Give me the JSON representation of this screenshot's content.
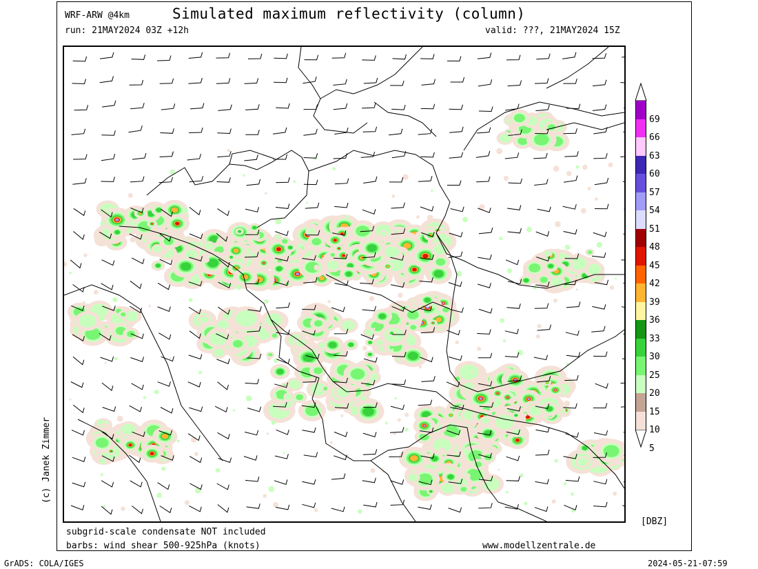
{
  "header": {
    "model": "WRF-ARW @4km",
    "title": "Simulated maximum reflectivity (column)",
    "run": "run: 21MAY2024 03Z +12h",
    "valid": "valid: ???, 21MAY2024 15Z"
  },
  "footer": {
    "note1": "subgrid-scale condensate NOT included",
    "note2": "barbs: wind shear 500-925hPa (knots)",
    "website": "www.modellzentrale.de",
    "grads": "GrADS: COLA/IGES",
    "timestamp": "2024-05-21-07:59",
    "author": "(c) Janek Zimmer"
  },
  "legend": {
    "unit": "[DBZ]",
    "levels": [
      {
        "label": "69",
        "color": "#a000c8"
      },
      {
        "label": "66",
        "color": "#f030f0"
      },
      {
        "label": "63",
        "color": "#ffc8ff"
      },
      {
        "label": "60",
        "color": "#3c28b4"
      },
      {
        "label": "57",
        "color": "#6450dc"
      },
      {
        "label": "54",
        "color": "#a09cf8"
      },
      {
        "label": "51",
        "color": "#dcdcff"
      },
      {
        "label": "48",
        "color": "#a00000"
      },
      {
        "label": "45",
        "color": "#e11400"
      },
      {
        "label": "42",
        "color": "#ff6400"
      },
      {
        "label": "39",
        "color": "#ffb432"
      },
      {
        "label": "36",
        "color": "#fff5a0"
      },
      {
        "label": "33",
        "color": "#159615"
      },
      {
        "label": "30",
        "color": "#37d23c"
      },
      {
        "label": "25",
        "color": "#78f573"
      },
      {
        "label": "20",
        "color": "#c8ffbe"
      },
      {
        "label": "15",
        "color": "#c4a495"
      },
      {
        "label": "10",
        "color": "#f5e1d7"
      },
      {
        "label": "5",
        "color": ""
      }
    ]
  }
}
